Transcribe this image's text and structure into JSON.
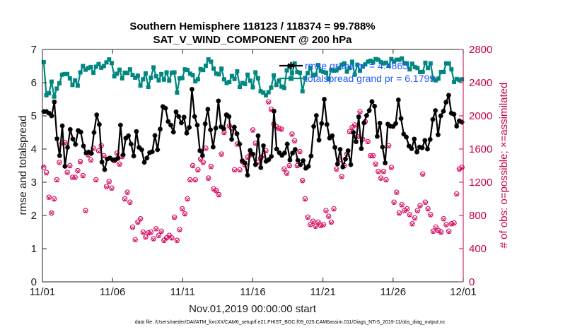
{
  "chart_data": {
    "type": "line",
    "title": "Southern Hemisphere 118123 / 118374 = 99.788%",
    "subtitle": "SAT_V_WIND_COMPONENT @ 200 hPa",
    "xlabel": "Nov.01,2019 00:00:00 start",
    "ylabel": "rmse and totalspread",
    "y2label": "# of obs: o=possible; ×=assimilated",
    "footer": "data file: /Users/raeder/DAI/ATM_forcXX/CAM6_setup/f.e21.FHIST_BGC.f09_025.CAM6assim.011/Diags_NTrS_2019-11/obs_diag_output.nc",
    "xlim": [
      0,
      30
    ],
    "ylim": [
      0,
      7
    ],
    "y2lim": [
      0,
      2800
    ],
    "xticks": [
      0,
      5,
      10,
      15,
      20,
      25,
      30
    ],
    "xtick_labels": [
      "11/01",
      "11/06",
      "11/11",
      "11/16",
      "11/21",
      "11/26",
      "12/01"
    ],
    "yticks": [
      0,
      1,
      2,
      3,
      4,
      5,
      6,
      7
    ],
    "ytick_labels": [
      "0",
      "1",
      "2",
      "3",
      "4",
      "5",
      "6",
      "7"
    ],
    "y2ticks": [
      0,
      400,
      800,
      1200,
      1600,
      2000,
      2400,
      2800
    ],
    "y2tick_labels": [
      "0",
      "400",
      "800",
      "1200",
      "1600",
      "2000",
      "2400",
      "2800"
    ],
    "series": [
      {
        "name": "rmse grand pr = 4.4865",
        "color": "#000000",
        "marker": "star",
        "values": [
          5.13,
          5.13,
          5.08,
          5.0,
          5.42,
          4.31,
          3.8,
          4.7,
          3.48,
          4.05,
          4.59,
          4.3,
          4.14,
          4.56,
          4.51,
          4.09,
          3.88,
          3.91,
          3.87,
          4.5,
          5.03,
          4.74,
          3.61,
          3.38,
          3.7,
          3.73,
          3.68,
          3.68,
          3.72,
          4.72,
          3.83,
          4.33,
          4.4,
          4.15,
          3.79,
          4.53,
          4.05,
          3.98,
          3.6,
          3.73,
          3.89,
          3.92,
          4.41,
          3.98,
          4.6,
          5.28,
          5.23,
          4.83,
          4.72,
          4.51,
          5.12,
          4.98,
          4.79,
          4.96,
          4.48,
          4.65,
          5.8,
          4.98,
          4.72,
          3.95,
          3.8,
          4.76,
          5.2,
          4.58,
          4.06,
          4.63,
          5.45,
          4.67,
          4.61,
          5.03,
          4.98,
          4.29,
          4.66,
          4.46,
          4.15,
          3.65,
          3.58,
          3.21,
          3.96,
          3.85,
          3.53,
          4.4,
          3.44,
          4.1,
          3.63,
          3.68,
          3.78,
          5.14,
          4.0,
          3.89,
          3.81,
          3.88,
          4.15,
          3.67,
          3.88,
          3.99,
          3.66,
          3.53,
          3.65,
          3.42,
          3.48,
          3.79,
          4.68,
          5.01,
          4.27,
          4.77,
          5.5,
          4.74,
          4.33,
          4.4,
          4.05,
          3.55,
          3.99,
          3.46,
          3.7,
          3.95,
          3.53,
          4.5,
          4.22,
          4.97,
          4.01,
          4.79,
          5.01,
          5.16,
          5.43,
          5.29,
          4.38,
          4.78,
          4.06,
          3.58,
          4.75,
          4.69,
          4.68,
          4.77,
          5.48,
          4.92,
          4.45,
          4.36,
          4.09,
          4.01,
          4.3,
          3.91,
          4.06,
          4.04,
          4.26,
          4.0,
          4.29,
          4.89,
          5.16,
          4.43,
          5.0,
          5.14,
          5.41,
          5.62,
          5.08,
          5.05,
          4.69,
          4.85,
          4.81
        ]
      },
      {
        "name": "totalspread grand pr = 6.1799",
        "color": "#00877f",
        "marker": "square",
        "values": [
          6.62,
          5.62,
          5.68,
          6.03,
          5.58,
          5.82,
          5.98,
          6.24,
          6.26,
          6.26,
          6.13,
          5.93,
          6.07,
          5.91,
          6.31,
          6.5,
          6.39,
          6.44,
          6.47,
          6.3,
          6.48,
          6.56,
          6.45,
          6.5,
          6.61,
          6.7,
          6.59,
          6.19,
          6.27,
          6.39,
          6.13,
          6.3,
          6.29,
          6.4,
          6.23,
          6.15,
          6.21,
          5.91,
          6.1,
          6.28,
          5.87,
          6.15,
          6.46,
          6.19,
          6.07,
          6.26,
          6.09,
          6.31,
          6.06,
          6.3,
          6.31,
          5.7,
          6.13,
          6.14,
          6.4,
          6.38,
          6.27,
          6.23,
          6.04,
          6.1,
          6.41,
          6.38,
          6.51,
          6.7,
          6.63,
          6.42,
          6.27,
          6.25,
          6.42,
          6.1,
          5.99,
          6.02,
          6.2,
          6.11,
          6.34,
          5.87,
          5.99,
          5.96,
          6.24,
          6.06,
          5.86,
          6.31,
          6.13,
          5.74,
          5.7,
          5.62,
          5.71,
          5.85,
          6.22,
          5.93,
          6.06,
          5.88,
          5.84,
          6.37,
          6.48,
          6.28,
          6.58,
          6.32,
          6.3,
          5.74,
          6.14,
          6.29,
          6.45,
          6.22,
          6.24,
          6.53,
          6.36,
          6.32,
          6.3,
          6.1,
          6.39,
          6.36,
          6.37,
          6.44,
          6.54,
          6.58,
          6.33,
          6.44,
          6.63,
          6.24,
          6.54,
          6.36,
          6.49,
          6.55,
          6.63,
          6.66,
          6.62,
          6.71,
          6.69,
          6.62,
          6.58,
          6.6,
          6.51,
          6.71,
          6.63,
          6.69,
          6.69,
          6.73,
          6.59,
          6.58,
          6.4,
          6.57,
          6.47,
          6.44,
          6.32,
          6.32,
          6.6,
          6.44,
          6.58,
          6.12,
          6.07,
          6.12,
          6.32,
          6.32,
          6.58,
          6.58,
          6.4,
          6.02,
          6.11,
          6.08,
          6.1
        ]
      }
    ],
    "obs_possible": {
      "name": "possible",
      "values": [
        1380,
        1320,
        1020,
        830,
        1000,
        1230,
        1440,
        1670,
        1680,
        1320,
        1400,
        1260,
        1260,
        1340,
        1450,
        1280,
        860,
        1530,
        1470,
        1610,
        1230,
        1580,
        1640,
        1520,
        1150,
        1210,
        1130,
        1460,
        1550,
        1420,
        1510,
        1000,
        1080,
        960,
        660,
        510,
        720,
        760,
        600,
        540,
        590,
        600,
        520,
        640,
        560,
        610,
        500,
        530,
        560,
        530,
        780,
        500,
        630,
        880,
        820,
        1000,
        1230,
        1400,
        1230,
        1350,
        1480,
        1440,
        1610,
        1250,
        1390,
        1120,
        1100,
        1050,
        1540,
        1800,
        2010,
        1880,
        1840,
        1350,
        1660,
        1350,
        1450,
        1410,
        1500,
        1530,
        1830,
        1670,
        1440,
        1490,
        1520,
        1580,
        2170,
        2080,
        1900,
        1870,
        1850,
        1840,
        1360,
        1310,
        1400,
        1780,
        1700,
        1400,
        1570,
        1220,
        1000,
        780,
        690,
        730,
        670,
        720,
        680,
        690,
        860,
        790,
        720,
        880,
        1360,
        1470,
        1270,
        1400,
        1540,
        1810,
        1860,
        1890,
        1750,
        2050,
        1720,
        1930,
        1690,
        1520,
        1520,
        1420,
        1330,
        1250,
        1330,
        1230,
        1640,
        1380,
        960,
        1080,
        830,
        930,
        860,
        880,
        810,
        700,
        770,
        860,
        920,
        1300,
        960,
        880,
        810,
        610,
        660,
        620,
        600,
        760,
        690,
        610,
        700,
        710,
        1060,
        1360,
        1380
      ]
    },
    "obs_assimilated": {
      "name": "assimilated",
      "values": [
        1390,
        1300,
        1010,
        830,
        990,
        1220,
        1430,
        1660,
        1670,
        1310,
        1390,
        1250,
        1250,
        1330,
        1440,
        1270,
        850,
        1520,
        1460,
        1600,
        1220,
        1570,
        1630,
        1510,
        1140,
        1200,
        1120,
        1450,
        1540,
        1410,
        1500,
        990,
        1070,
        950,
        650,
        500,
        710,
        750,
        590,
        530,
        580,
        590,
        510,
        630,
        550,
        600,
        490,
        520,
        550,
        520,
        770,
        490,
        620,
        870,
        810,
        990,
        1220,
        1390,
        1220,
        1340,
        1470,
        1430,
        1600,
        1240,
        1380,
        1110,
        1090,
        1040,
        1530,
        1790,
        2000,
        1870,
        1830,
        1340,
        1650,
        1340,
        1440,
        1400,
        1490,
        1520,
        1820,
        1660,
        1430,
        1480,
        1510,
        1570,
        2160,
        2070,
        1890,
        1860,
        1840,
        1830,
        1350,
        1300,
        1390,
        1770,
        1690,
        1390,
        1560,
        1210,
        990,
        770,
        680,
        720,
        660,
        710,
        670,
        680,
        850,
        780,
        710,
        870,
        1350,
        1460,
        1260,
        1390,
        1530,
        1800,
        1850,
        1880,
        1740,
        2040,
        1710,
        1920,
        1680,
        1510,
        1510,
        1410,
        1320,
        1240,
        1320,
        1220,
        1630,
        1370,
        950,
        1070,
        820,
        920,
        850,
        870,
        800,
        690,
        760,
        850,
        910,
        1290,
        950,
        870,
        800,
        600,
        650,
        610,
        590,
        750,
        680,
        600,
        690,
        700,
        1050,
        1350,
        1370
      ],
      "color": "#d6005c"
    }
  },
  "legend": {
    "rmse_label": "rmse grand pr = 4.4865",
    "spread_label": "totalspread grand pr = 6.1799"
  }
}
